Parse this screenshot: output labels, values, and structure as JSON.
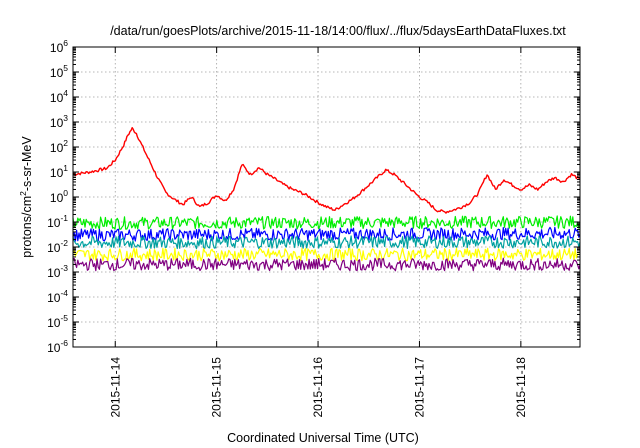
{
  "chart_data": {
    "type": "line",
    "title": "/data/run/goesPlots/archive/2015-11-18/14:00/flux/../flux/5daysEarthDataFluxes.txt",
    "xlabel": "Coordinated Universal Time (UTC)",
    "ylabel": {
      "prefix": "protons/cm",
      "exponent": "2",
      "suffix": "-s-sr-MeV"
    },
    "yscale": "log",
    "ylim": [
      1e-06,
      1000000.0
    ],
    "xlim": [
      "2015-11-13 14:00",
      "2015-11-18 14:00"
    ],
    "grid": true,
    "legend": "none",
    "y_ticks": [
      {
        "base": "10",
        "exp": "-6",
        "value": 1e-06
      },
      {
        "base": "10",
        "exp": "-5",
        "value": 1e-05
      },
      {
        "base": "10",
        "exp": "-4",
        "value": 0.0001
      },
      {
        "base": "10",
        "exp": "-3",
        "value": 0.001
      },
      {
        "base": "10",
        "exp": "-2",
        "value": 0.01
      },
      {
        "base": "10",
        "exp": "-1",
        "value": 0.1
      },
      {
        "base": "10",
        "exp": "0",
        "value": 1
      },
      {
        "base": "10",
        "exp": "1",
        "value": 10
      },
      {
        "base": "10",
        "exp": "2",
        "value": 100
      },
      {
        "base": "10",
        "exp": "3",
        "value": 1000
      },
      {
        "base": "10",
        "exp": "4",
        "value": 10000
      },
      {
        "base": "10",
        "exp": "5",
        "value": 100000
      },
      {
        "base": "10",
        "exp": "6",
        "value": 1000000
      }
    ],
    "x_ticks": [
      "2015-11-14",
      "2015-11-15",
      "2015-11-16",
      "2015-11-17",
      "2015-11-18"
    ],
    "series": [
      {
        "color": "#ff0000",
        "values": [
          [
            "2015-11-13 14:00",
            8
          ],
          [
            "2015-11-13 18:00",
            10
          ],
          [
            "2015-11-13 22:00",
            14
          ],
          [
            "2015-11-14 00:00",
            30
          ],
          [
            "2015-11-14 02:00",
            120
          ],
          [
            "2015-11-14 03:00",
            300
          ],
          [
            "2015-11-14 04:00",
            550
          ],
          [
            "2015-11-14 05:00",
            350
          ],
          [
            "2015-11-14 06:00",
            150
          ],
          [
            "2015-11-14 08:00",
            30
          ],
          [
            "2015-11-14 10:00",
            6
          ],
          [
            "2015-11-14 12:00",
            1.5
          ],
          [
            "2015-11-14 14:00",
            0.8
          ],
          [
            "2015-11-14 16:00",
            0.5
          ],
          [
            "2015-11-14 18:00",
            1.0
          ],
          [
            "2015-11-14 20:00",
            0.4
          ],
          [
            "2015-11-14 22:00",
            0.6
          ],
          [
            "2015-11-15 00:00",
            1.2
          ],
          [
            "2015-11-15 02:00",
            0.7
          ],
          [
            "2015-11-15 04:00",
            2
          ],
          [
            "2015-11-15 06:00",
            20
          ],
          [
            "2015-11-15 08:00",
            8
          ],
          [
            "2015-11-15 10:00",
            15
          ],
          [
            "2015-11-15 12:00",
            8
          ],
          [
            "2015-11-15 14:00",
            5
          ],
          [
            "2015-11-15 16:00",
            3
          ],
          [
            "2015-11-15 18:00",
            2
          ],
          [
            "2015-11-15 20:00",
            1.5
          ],
          [
            "2015-11-15 22:00",
            1.0
          ],
          [
            "2015-11-16 00:00",
            0.6
          ],
          [
            "2015-11-16 02:00",
            0.4
          ],
          [
            "2015-11-16 04:00",
            0.3
          ],
          [
            "2015-11-16 06:00",
            0.5
          ],
          [
            "2015-11-16 08:00",
            0.8
          ],
          [
            "2015-11-16 10:00",
            1.5
          ],
          [
            "2015-11-16 12:00",
            3
          ],
          [
            "2015-11-16 14:00",
            6
          ],
          [
            "2015-11-16 16:00",
            12
          ],
          [
            "2015-11-16 18:00",
            8
          ],
          [
            "2015-11-16 20:00",
            4
          ],
          [
            "2015-11-16 22:00",
            2
          ],
          [
            "2015-11-17 00:00",
            1.0
          ],
          [
            "2015-11-17 02:00",
            0.6
          ],
          [
            "2015-11-17 04:00",
            0.3
          ],
          [
            "2015-11-17 06:00",
            0.25
          ],
          [
            "2015-11-17 08:00",
            0.3
          ],
          [
            "2015-11-17 10:00",
            0.4
          ],
          [
            "2015-11-17 12:00",
            0.6
          ],
          [
            "2015-11-17 14:00",
            1.5
          ],
          [
            "2015-11-17 16:00",
            8
          ],
          [
            "2015-11-17 18:00",
            2
          ],
          [
            "2015-11-17 20:00",
            5
          ],
          [
            "2015-11-17 22:00",
            3
          ],
          [
            "2015-11-18 00:00",
            2
          ],
          [
            "2015-11-18 02:00",
            3
          ],
          [
            "2015-11-18 04:00",
            2
          ],
          [
            "2015-11-18 06:00",
            4
          ],
          [
            "2015-11-18 08:00",
            6
          ],
          [
            "2015-11-18 10:00",
            4
          ],
          [
            "2015-11-18 12:00",
            8
          ],
          [
            "2015-11-18 14:00",
            5
          ]
        ]
      },
      {
        "color": "#00ee00",
        "values": [
          [
            "2015-11-13 14:00",
            0.09
          ],
          [
            "2015-11-18 14:00",
            0.1
          ]
        ]
      },
      {
        "color": "#0000ff",
        "values": [
          [
            "2015-11-13 14:00",
            0.03
          ],
          [
            "2015-11-18 14:00",
            0.035
          ]
        ]
      },
      {
        "color": "#00a0a0",
        "values": [
          [
            "2015-11-13 14:00",
            0.015
          ],
          [
            "2015-11-18 14:00",
            0.016
          ]
        ]
      },
      {
        "color": "#ffff00",
        "values": [
          [
            "2015-11-13 14:00",
            0.005
          ],
          [
            "2015-11-18 14:00",
            0.005
          ]
        ]
      },
      {
        "color": "#800080",
        "values": [
          [
            "2015-11-13 14:00",
            0.002
          ],
          [
            "2015-11-18 14:00",
            0.002
          ]
        ]
      }
    ]
  }
}
